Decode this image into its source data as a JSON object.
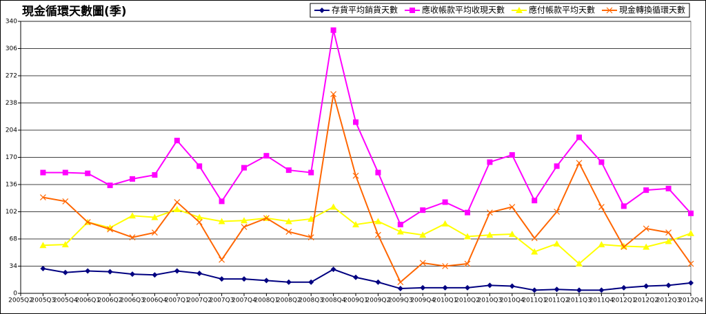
{
  "chart_data": {
    "type": "line",
    "title": "現金循環天數圖(季)",
    "categories": [
      "2005Q2",
      "2005Q3",
      "2005Q4",
      "2006Q1",
      "2006Q2",
      "2006Q3",
      "2006Q4",
      "2007Q1",
      "2007Q2",
      "2007Q3",
      "2007Q4",
      "2008Q1",
      "2008Q2",
      "2008Q3",
      "2008Q4",
      "2009Q1",
      "2009Q2",
      "2009Q3",
      "2009Q4",
      "2010Q1",
      "2010Q2",
      "2010Q3",
      "2010Q4",
      "2011Q1",
      "2011Q2",
      "2011Q3",
      "2011Q4",
      "2012Q1",
      "2012Q2",
      "2012Q3",
      "2012Q4"
    ],
    "series": [
      {
        "name": "存貨平均銷貨天數",
        "color": "#000080",
        "marker": "diamond",
        "values": [
          null,
          31,
          26,
          28,
          27,
          24,
          23,
          28,
          25,
          18,
          18,
          16,
          14,
          14,
          30,
          20,
          14,
          6,
          7,
          7,
          7,
          10,
          9,
          4,
          5,
          4,
          4,
          7,
          9,
          10,
          13
        ]
      },
      {
        "name": "應收帳款平均收現天數",
        "color": "#ff00ff",
        "marker": "square",
        "values": [
          null,
          151,
          151,
          150,
          135,
          143,
          148,
          191,
          159,
          115,
          157,
          172,
          154,
          151,
          329,
          214,
          151,
          86,
          104,
          114,
          101,
          164,
          173,
          116,
          159,
          195,
          164,
          109,
          129,
          131,
          100
        ]
      },
      {
        "name": "應付帳款平均天數",
        "color": "#ffff00",
        "marker": "triangle",
        "values": [
          null,
          60,
          61,
          89,
          82,
          97,
          95,
          105,
          95,
          90,
          91,
          94,
          90,
          93,
          108,
          86,
          90,
          77,
          73,
          87,
          71,
          73,
          74,
          52,
          62,
          37,
          61,
          59,
          58,
          65,
          75
        ]
      },
      {
        "name": "現金轉換循環天數",
        "color": "#ff6600",
        "marker": "x",
        "values": [
          null,
          120,
          115,
          89,
          80,
          70,
          76,
          114,
          89,
          42,
          83,
          94,
          77,
          70,
          249,
          147,
          73,
          14,
          38,
          34,
          37,
          101,
          108,
          69,
          102,
          163,
          108,
          58,
          81,
          76,
          37
        ]
      }
    ],
    "ylim": [
      0,
      340
    ],
    "yticks": [
      0,
      34,
      68,
      102,
      136,
      170,
      204,
      238,
      272,
      306,
      340
    ],
    "grid": true,
    "legend": "top-right"
  }
}
